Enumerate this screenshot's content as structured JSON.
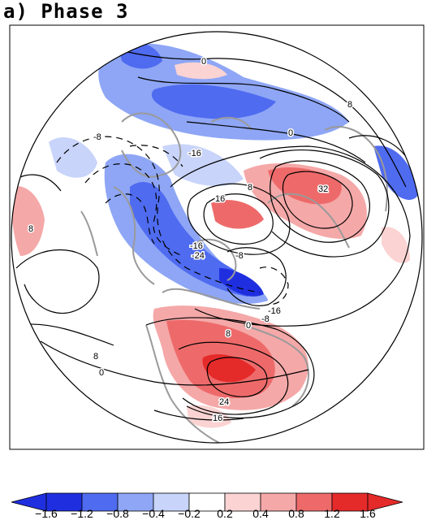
{
  "panel_title": "a) Phase 3",
  "map": {
    "projection": "polar stereographic (Northern Hemisphere)",
    "shading_field_colors": [
      "#1f2fe0",
      "#4f6bf0",
      "#8ea6f5",
      "#c8d4fa",
      "#ffffff",
      "#fbd3d3",
      "#f5a8a8",
      "#ee6a6a",
      "#e52a2a"
    ],
    "contour_labels": [
      "0",
      "8",
      "-8",
      "-16",
      "0",
      "16",
      "8",
      "32",
      "8",
      "-16",
      "-24",
      "-8",
      "-16",
      "-8",
      "0",
      "8",
      "8",
      "0",
      "24",
      "16"
    ]
  },
  "colorbar": {
    "ticks": [
      "-1.6",
      "-1.2",
      "-0.8",
      "-0.4",
      "-0.2",
      "0.2",
      "0.4",
      "0.8",
      "1.2",
      "1.6"
    ],
    "colors": [
      "#1f2fe0",
      "#4f6bf0",
      "#8ea6f5",
      "#c8d4fa",
      "#ffffff",
      "#fbd3d3",
      "#f5a8a8",
      "#ee6a6a",
      "#e52a2a"
    ],
    "low_arrow_color": "#1f2fe0",
    "high_arrow_color": "#e52a2a"
  }
}
